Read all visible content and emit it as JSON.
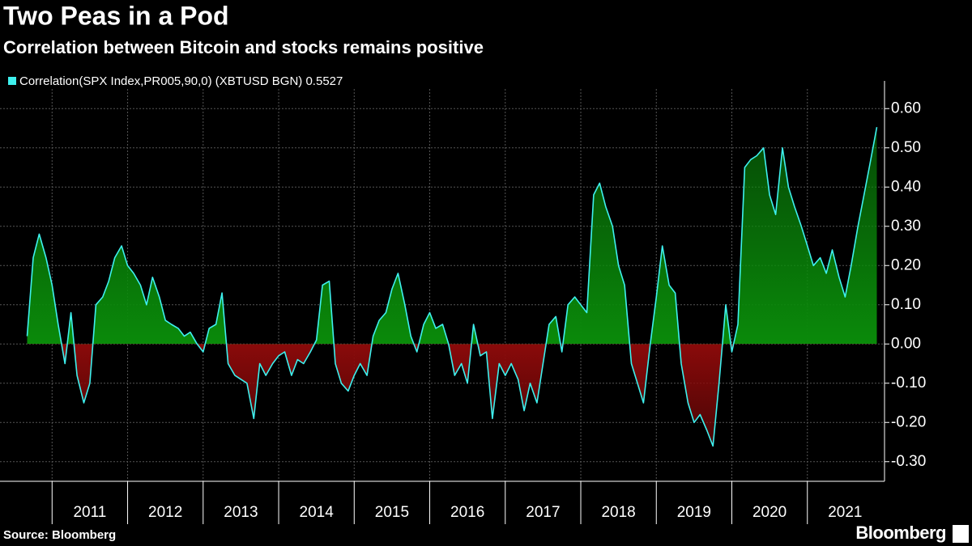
{
  "chart_data": {
    "type": "area-line",
    "title": "Two Peas in a Pod",
    "subtitle": "Correlation between Bitcoin and stocks remains positive",
    "source": "Source: Bloomberg",
    "brand": "Bloomberg",
    "series": [
      {
        "name": "Correlation(SPX Index,PR005,90,0) (XBTUSD BGN) 0.5527",
        "color": "#3ef0ee",
        "x": [
          2010.67,
          2010.75,
          2010.83,
          2010.92,
          2011.0,
          2011.08,
          2011.17,
          2011.25,
          2011.33,
          2011.42,
          2011.5,
          2011.58,
          2011.67,
          2011.75,
          2011.83,
          2011.92,
          2012.0,
          2012.08,
          2012.17,
          2012.25,
          2012.33,
          2012.42,
          2012.5,
          2012.58,
          2012.67,
          2012.75,
          2012.83,
          2012.92,
          2013.0,
          2013.08,
          2013.17,
          2013.25,
          2013.33,
          2013.42,
          2013.5,
          2013.58,
          2013.67,
          2013.75,
          2013.83,
          2013.92,
          2014.0,
          2014.08,
          2014.17,
          2014.25,
          2014.33,
          2014.42,
          2014.5,
          2014.58,
          2014.67,
          2014.75,
          2014.83,
          2014.92,
          2015.0,
          2015.08,
          2015.17,
          2015.25,
          2015.33,
          2015.42,
          2015.5,
          2015.58,
          2015.67,
          2015.75,
          2015.83,
          2015.92,
          2016.0,
          2016.08,
          2016.17,
          2016.25,
          2016.33,
          2016.42,
          2016.5,
          2016.58,
          2016.67,
          2016.75,
          2016.83,
          2016.92,
          2017.0,
          2017.08,
          2017.17,
          2017.25,
          2017.33,
          2017.42,
          2017.5,
          2017.58,
          2017.67,
          2017.75,
          2017.83,
          2017.92,
          2018.0,
          2018.08,
          2018.17,
          2018.25,
          2018.33,
          2018.42,
          2018.5,
          2018.58,
          2018.67,
          2018.75,
          2018.83,
          2018.92,
          2019.0,
          2019.08,
          2019.17,
          2019.25,
          2019.33,
          2019.42,
          2019.5,
          2019.58,
          2019.67,
          2019.75,
          2019.83,
          2019.92,
          2020.0,
          2020.08,
          2020.17,
          2020.25,
          2020.33,
          2020.42,
          2020.5,
          2020.58,
          2020.67,
          2020.75,
          2020.83,
          2020.92,
          2021.0,
          2021.08,
          2021.17,
          2021.25,
          2021.33,
          2021.42,
          2021.5,
          2021.58,
          2021.67,
          2021.75,
          2021.83,
          2021.92
        ],
        "values": [
          0.02,
          0.22,
          0.28,
          0.22,
          0.15,
          0.05,
          -0.05,
          0.08,
          -0.08,
          -0.15,
          -0.1,
          0.1,
          0.12,
          0.16,
          0.22,
          0.25,
          0.2,
          0.18,
          0.15,
          0.1,
          0.17,
          0.12,
          0.06,
          0.05,
          0.04,
          0.02,
          0.03,
          0.0,
          -0.02,
          0.04,
          0.05,
          0.13,
          -0.05,
          -0.08,
          -0.09,
          -0.1,
          -0.19,
          -0.05,
          -0.08,
          -0.05,
          -0.03,
          -0.02,
          -0.08,
          -0.04,
          -0.05,
          -0.02,
          0.01,
          0.15,
          0.16,
          -0.05,
          -0.1,
          -0.12,
          -0.08,
          -0.05,
          -0.08,
          0.02,
          0.06,
          0.08,
          0.14,
          0.18,
          0.1,
          0.02,
          -0.02,
          0.05,
          0.08,
          0.04,
          0.05,
          0.0,
          -0.08,
          -0.05,
          -0.1,
          0.05,
          -0.03,
          -0.02,
          -0.19,
          -0.05,
          -0.08,
          -0.05,
          -0.09,
          -0.17,
          -0.1,
          -0.15,
          -0.05,
          0.05,
          0.07,
          -0.02,
          0.1,
          0.12,
          0.1,
          0.08,
          0.38,
          0.41,
          0.35,
          0.3,
          0.2,
          0.15,
          -0.05,
          -0.1,
          -0.15,
          0.0,
          0.12,
          0.25,
          0.15,
          0.13,
          -0.05,
          -0.15,
          -0.2,
          -0.18,
          -0.22,
          -0.26,
          -0.1,
          0.1,
          -0.02,
          0.05,
          0.45,
          0.47,
          0.48,
          0.5,
          0.38,
          0.33,
          0.5,
          0.4,
          0.35,
          0.3,
          0.25,
          0.2,
          0.22,
          0.18,
          0.24,
          0.17,
          0.12,
          0.2,
          0.3,
          0.38,
          0.46,
          0.5527
        ]
      }
    ],
    "xlim": [
      2010.6,
      2022.0
    ],
    "xticks": [
      2011,
      2012,
      2013,
      2014,
      2015,
      2016,
      2017,
      2018,
      2019,
      2020,
      2021
    ],
    "ylim": [
      -0.35,
      0.65
    ],
    "yticks": [
      {
        "value": -0.3,
        "label": "-0.30"
      },
      {
        "value": -0.2,
        "label": "-0.20"
      },
      {
        "value": -0.1,
        "label": "-0.10"
      },
      {
        "value": 0,
        "label": "0.00"
      },
      {
        "value": 0.1,
        "label": "0.10"
      },
      {
        "value": 0.2,
        "label": "0.20"
      },
      {
        "value": 0.3,
        "label": "0.30"
      },
      {
        "value": 0.4,
        "label": "0.40"
      },
      {
        "value": 0.5,
        "label": "0.50"
      },
      {
        "value": 0.6,
        "label": "0.60"
      }
    ],
    "grid": true,
    "positive_color": "#0a8a0a",
    "negative_color": "#8a0a0a"
  }
}
